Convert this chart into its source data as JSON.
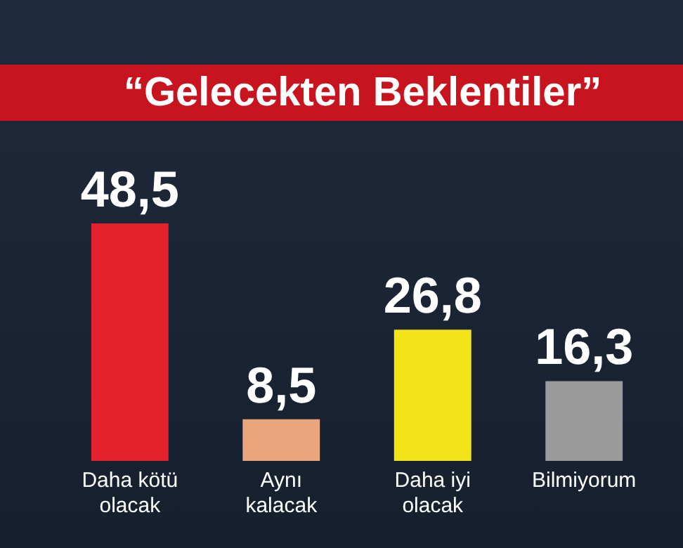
{
  "chart_data": {
    "type": "bar",
    "title": "“Gelecekten Beklentiler”",
    "categories": [
      "Daha kötü olacak",
      "Aynı kalacak",
      "Daha iyi olacak",
      "Bilmiyorum"
    ],
    "values": [
      48.5,
      8.5,
      26.8,
      16.3
    ],
    "value_labels": [
      "48,5",
      "8,5",
      "26,8",
      "16,3"
    ],
    "colors": [
      "#e3232b",
      "#e9a57c",
      "#f2e418",
      "#9b9b9b"
    ]
  }
}
